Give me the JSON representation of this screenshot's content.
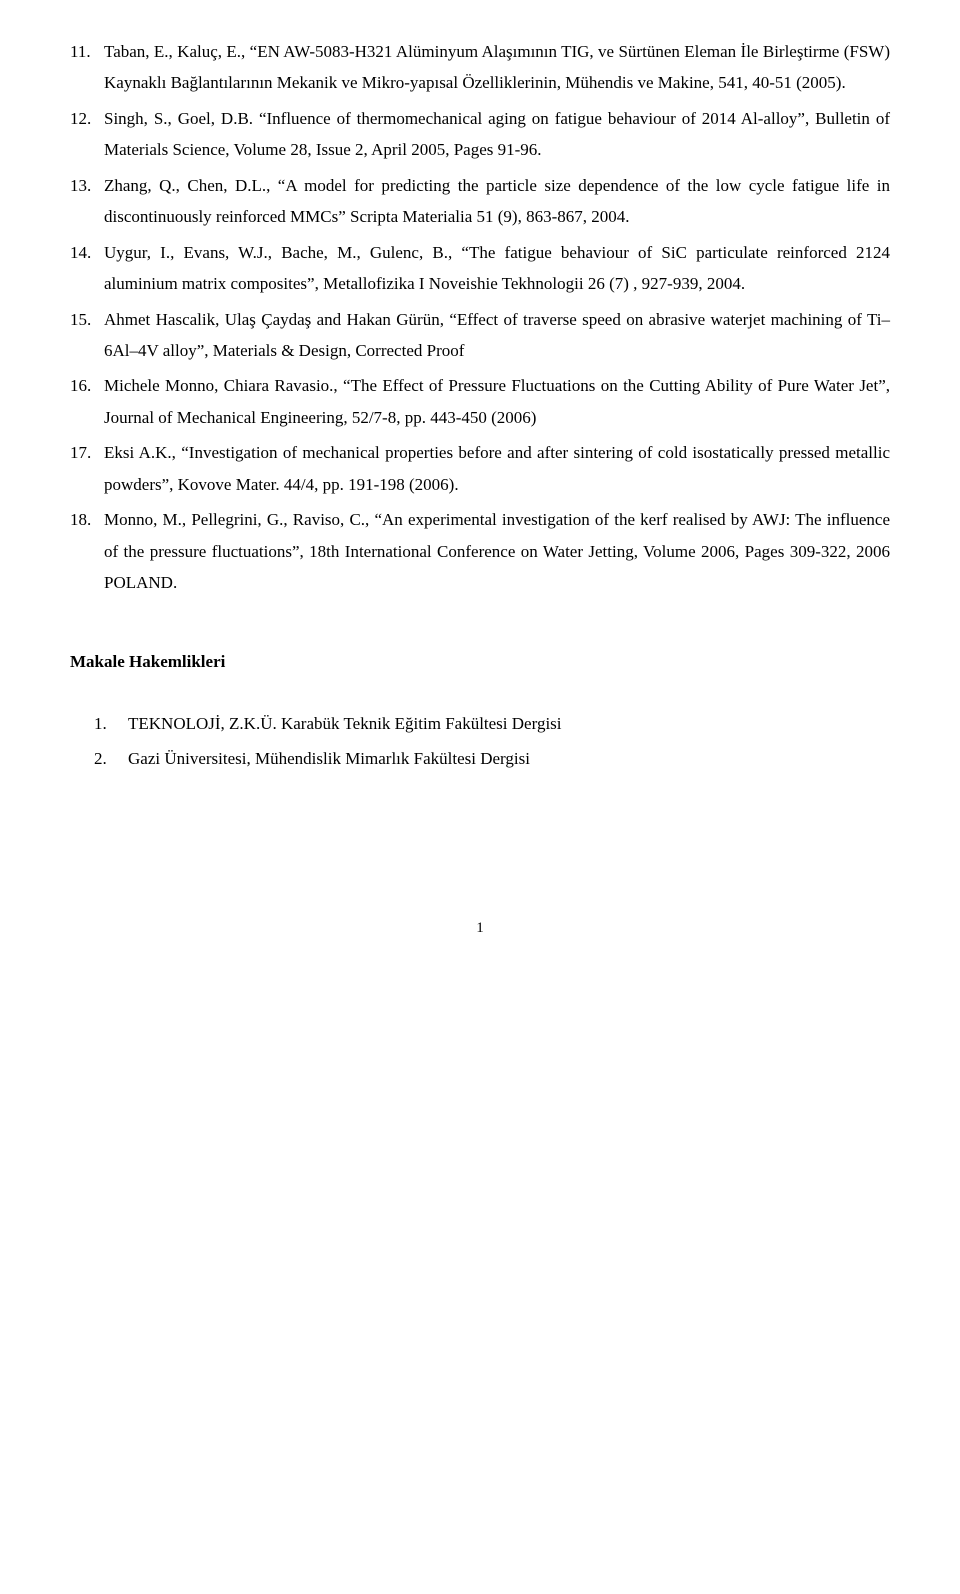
{
  "references": [
    {
      "num": "11.",
      "text": "Taban, E., Kaluç, E., “EN AW-5083-H321 Alüminyum Alaşımının TIG, ve Sürtünen Eleman İle Birleştirme (FSW) Kaynaklı Bağlantılarının Mekanik ve Mikro-yapısal Özelliklerinin, Mühendis ve Makine, 541, 40-51 (2005)."
    },
    {
      "num": "12.",
      "text": "Singh, S., Goel, D.B. “Influence of thermomechanical aging on fatigue behaviour of 2014 Al-alloy”, Bulletin of Materials Science, Volume 28, Issue 2, April 2005, Pages 91-96."
    },
    {
      "num": "13.",
      "text": "Zhang, Q., Chen, D.L., “A model for predicting the particle size dependence of the low cycle fatigue life in discontinuously reinforced MMCs” Scripta Materialia 51 (9), 863-867, 2004."
    },
    {
      "num": "14.",
      "text": "Uygur, I., Evans, W.J., Bache, M., Gulenc, B., “The fatigue behaviour of SiC particulate reinforced 2124 aluminium matrix composites”, Metallofizika I Noveishie Tekhnologii 26 (7) , 927-939, 2004."
    },
    {
      "num": "15.",
      "text": "Ahmet Hascalik, Ulaş Çaydaş and Hakan Gürün, “Effect of traverse speed on abrasive waterjet machining of Ti–6Al–4V alloy”, Materials & Design, Corrected Proof"
    },
    {
      "num": "16.",
      "text": "Michele Monno, Chiara Ravasio., “The Effect of Pressure Fluctuations on the Cutting Ability of Pure Water Jet”, Journal of Mechanical Engineering, 52/7-8, pp. 443-450 (2006)"
    },
    {
      "num": "17.",
      "text": "Eksi A.K., “Investigation of mechanical properties before and after sintering of cold isostatically pressed metallic powders”, Kovove Mater. 44/4, pp. 191-198 (2006)."
    },
    {
      "num": "18.",
      "text": "Monno, M., Pellegrini, G., Raviso, C., “An experimental investigation of the kerf realised by AWJ: The influence of the pressure fluctuations”, 18th International Conference on Water Jetting, Volume 2006, Pages 309-322, 2006 POLAND."
    }
  ],
  "section_title": "Makale Hakemlikleri",
  "makale": [
    {
      "num": "1.",
      "text": "TEKNOLOJİ, Z.K.Ü. Karabük Teknik Eğitim Fakültesi Dergisi"
    },
    {
      "num": "2.",
      "text": "Gazi Üniversitesi, Mühendislik Mimarlık Fakültesi Dergisi"
    }
  ],
  "page_num": "1"
}
